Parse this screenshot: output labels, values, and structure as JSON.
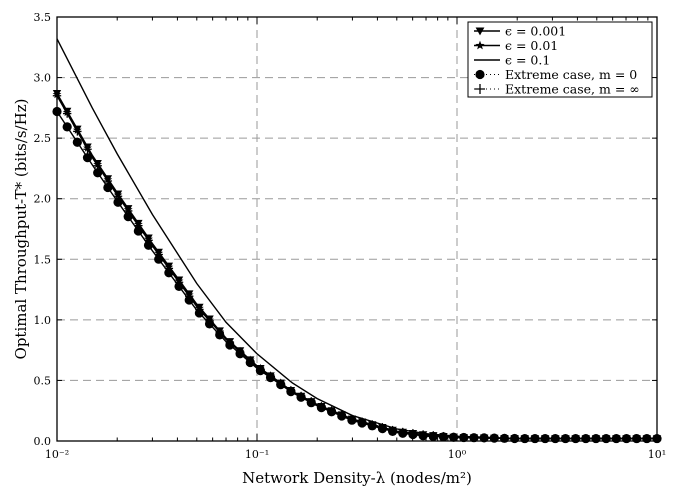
{
  "chart_data": {
    "type": "line",
    "xlabel": "Network Density-λ (nodes/m²)",
    "ylabel": "Optimal Throughput-T* (bits/s/Hz)",
    "xscale": "log",
    "xlim": [
      0.01,
      10
    ],
    "ylim": [
      0,
      3.5
    ],
    "grid": true,
    "legend_position": "top-right",
    "x_tick_labels": [
      "10⁻²",
      "10⁻¹",
      "10⁰",
      "10¹"
    ],
    "y_tick_labels": [
      "0.0",
      "0.5",
      "1.0",
      "1.5",
      "2.0",
      "2.5",
      "3.0",
      "3.5"
    ],
    "series": [
      {
        "name": "ϵ = 0.001",
        "marker": "triangle-down",
        "x": [
          0.01,
          0.015,
          0.02,
          0.03,
          0.05,
          0.07,
          0.1,
          0.15,
          0.2,
          0.3,
          0.5,
          0.7,
          1,
          2,
          5,
          10
        ],
        "y": [
          2.87,
          2.36,
          2.05,
          1.63,
          1.13,
          0.85,
          0.62,
          0.41,
          0.3,
          0.18,
          0.08,
          0.05,
          0.03,
          0.02,
          0.02,
          0.02
        ]
      },
      {
        "name": "ϵ = 0.01",
        "marker": "star",
        "x": [
          0.01,
          0.015,
          0.02,
          0.03,
          0.05,
          0.07,
          0.1,
          0.15,
          0.2,
          0.3,
          0.5,
          0.7,
          1,
          2,
          5,
          10
        ],
        "y": [
          2.86,
          2.35,
          2.04,
          1.62,
          1.12,
          0.84,
          0.62,
          0.41,
          0.3,
          0.18,
          0.08,
          0.05,
          0.03,
          0.02,
          0.02,
          0.02
        ]
      },
      {
        "name": "ϵ = 0.1",
        "marker": "none",
        "x": [
          0.01,
          0.015,
          0.02,
          0.03,
          0.05,
          0.07,
          0.1,
          0.15,
          0.2,
          0.3,
          0.5,
          0.7,
          1,
          2,
          5,
          10
        ],
        "y": [
          3.32,
          2.75,
          2.37,
          1.87,
          1.3,
          0.98,
          0.72,
          0.48,
          0.35,
          0.21,
          0.1,
          0.06,
          0.04,
          0.02,
          0.02,
          0.02
        ]
      },
      {
        "name": "Extreme case, m = 0",
        "marker": "circle",
        "x": [
          0.01,
          0.015,
          0.02,
          0.03,
          0.05,
          0.07,
          0.1,
          0.15,
          0.2,
          0.3,
          0.5,
          0.7,
          1,
          2,
          5,
          10
        ],
        "y": [
          2.72,
          2.28,
          1.98,
          1.57,
          1.08,
          0.82,
          0.6,
          0.4,
          0.29,
          0.17,
          0.07,
          0.04,
          0.03,
          0.02,
          0.02,
          0.02
        ]
      },
      {
        "name": "Extreme case, m = ∞",
        "marker": "plus",
        "x": [
          0.01,
          0.015,
          0.02,
          0.03,
          0.05,
          0.07,
          0.1,
          0.15,
          0.2,
          0.3,
          0.5,
          0.7,
          1,
          2,
          5,
          10
        ],
        "y": [
          2.85,
          2.34,
          2.03,
          1.61,
          1.11,
          0.84,
          0.61,
          0.41,
          0.3,
          0.18,
          0.08,
          0.05,
          0.03,
          0.02,
          0.02,
          0.02
        ]
      }
    ]
  }
}
